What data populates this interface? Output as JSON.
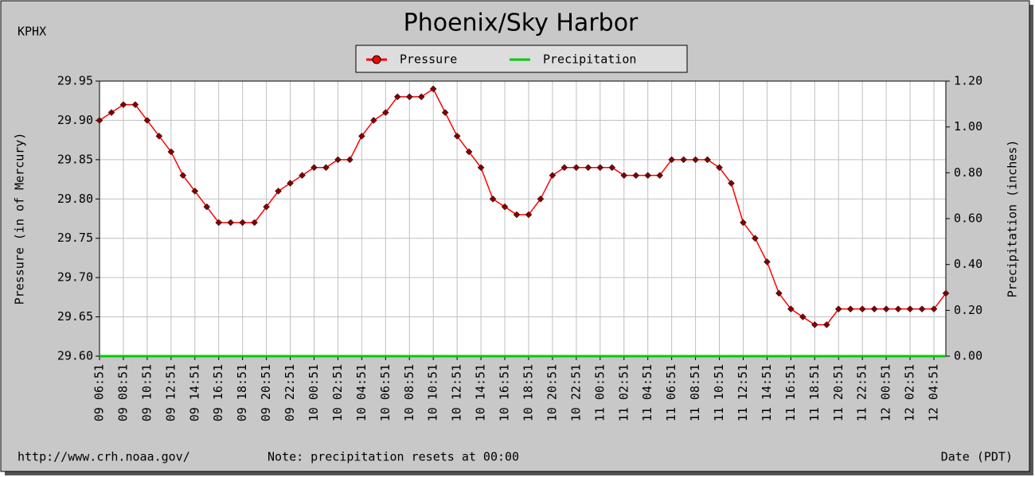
{
  "station": "KPHX",
  "footer": {
    "url": "http://www.crh.noaa.gov/",
    "note": "Note: precipitation resets at 00:00"
  },
  "chart_data": {
    "type": "line",
    "title": "Phoenix/Sky Harbor",
    "y_label": "Pressure (in of Mercury)",
    "y2_label": "Precipitation (inches)",
    "x_label": "Date (PDT)",
    "categories": [
      "09 06:51",
      null,
      "09 08:51",
      null,
      "09 10:51",
      null,
      "09 12:51",
      null,
      "09 14:51",
      null,
      "09 16:51",
      null,
      "09 18:51",
      null,
      "09 20:51",
      null,
      "09 22:51",
      null,
      "10 00:51",
      null,
      "10 02:51",
      null,
      "10 04:51",
      null,
      "10 06:51",
      null,
      "10 08:51",
      null,
      "10 10:51",
      null,
      "10 12:51",
      null,
      "10 14:51",
      null,
      "10 16:51",
      null,
      "10 18:51",
      null,
      "10 20:51",
      null,
      "10 22:51",
      null,
      "11 00:51",
      null,
      "11 02:51",
      null,
      "11 04:51",
      null,
      "11 06:51",
      null,
      "11 08:51",
      null,
      "11 10:51",
      null,
      "11 12:51",
      null,
      "11 14:51",
      null,
      "11 16:51",
      null,
      "11 18:51",
      null,
      "11 20:51",
      null,
      "11 22:51",
      null,
      "12 00:51",
      null,
      "12 02:51",
      null,
      "12 04:51",
      null
    ],
    "series": [
      {
        "name": "Pressure",
        "color": "#ff0000",
        "marker_color": "#800000",
        "values": [
          29.9,
          29.91,
          29.92,
          29.92,
          29.9,
          29.88,
          29.86,
          29.83,
          29.81,
          29.79,
          29.77,
          29.77,
          29.77,
          29.77,
          29.79,
          29.81,
          29.82,
          29.83,
          29.84,
          29.84,
          29.85,
          29.85,
          29.88,
          29.9,
          29.91,
          29.93,
          29.93,
          29.93,
          29.94,
          29.91,
          29.88,
          29.86,
          29.84,
          29.8,
          29.79,
          29.78,
          29.78,
          29.8,
          29.83,
          29.84,
          29.84,
          29.84,
          29.84,
          29.84,
          29.83,
          29.83,
          29.83,
          29.83,
          29.85,
          29.85,
          29.85,
          29.85,
          29.84,
          29.82,
          29.77,
          29.75,
          29.72,
          29.68,
          29.66,
          29.65,
          29.64,
          29.64,
          29.66,
          29.66,
          29.66,
          29.66,
          29.66,
          29.66,
          29.66,
          29.66,
          29.66,
          29.68
        ]
      },
      {
        "name": "Precipitation",
        "color": "#00cc00",
        "axis": "y2",
        "values": [
          0,
          0,
          0,
          0,
          0,
          0,
          0,
          0,
          0,
          0,
          0,
          0,
          0,
          0,
          0,
          0,
          0,
          0,
          0,
          0,
          0,
          0,
          0,
          0,
          0,
          0,
          0,
          0,
          0,
          0,
          0,
          0,
          0,
          0,
          0,
          0,
          0,
          0,
          0,
          0,
          0,
          0,
          0,
          0,
          0,
          0,
          0,
          0,
          0,
          0,
          0,
          0,
          0,
          0,
          0,
          0,
          0,
          0,
          0,
          0,
          0,
          0,
          0,
          0,
          0,
          0,
          0,
          0,
          0,
          0,
          0,
          0
        ]
      }
    ],
    "ylim": [
      29.6,
      29.95
    ],
    "yticks": [
      {
        "value": 29.6,
        "label": "29.60"
      },
      {
        "value": 29.65,
        "label": "29.65"
      },
      {
        "value": 29.7,
        "label": "29.70"
      },
      {
        "value": 29.75,
        "label": "29.75"
      },
      {
        "value": 29.8,
        "label": "29.80"
      },
      {
        "value": 29.85,
        "label": "29.85"
      },
      {
        "value": 29.9,
        "label": "29.90"
      },
      {
        "value": 29.95,
        "label": "29.95"
      }
    ],
    "y2lim": [
      0,
      1.2
    ],
    "y2ticks": [
      {
        "value": 0,
        "label": "0.00"
      },
      {
        "value": 0.2,
        "label": "0.20"
      },
      {
        "value": 0.4,
        "label": "0.40"
      },
      {
        "value": 0.6,
        "label": "0.60"
      },
      {
        "value": 0.8,
        "label": "0.80"
      },
      {
        "value": 1.0,
        "label": "1.00"
      },
      {
        "value": 1.2,
        "label": "1.20"
      }
    ],
    "grid": true,
    "legend": "top"
  }
}
